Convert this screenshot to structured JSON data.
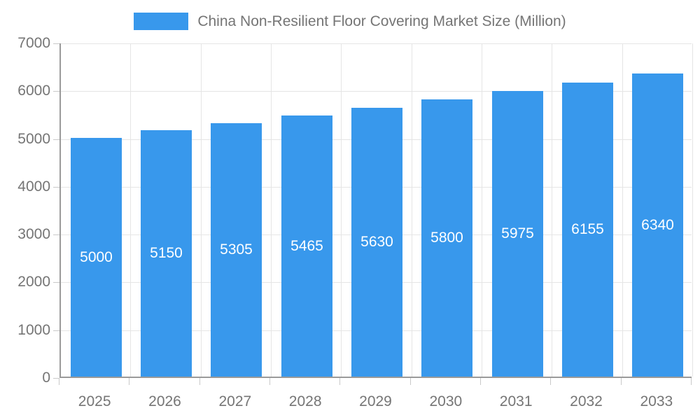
{
  "legend": {
    "label": "China Non-Resilient Floor Covering Market Size (Million)"
  },
  "chart_data": {
    "type": "bar",
    "title": "China Non-Resilient Floor Covering Market Size (Million)",
    "categories": [
      "2025",
      "2026",
      "2027",
      "2028",
      "2029",
      "2030",
      "2031",
      "2032",
      "2033"
    ],
    "values": [
      5000,
      5150,
      5305,
      5465,
      5630,
      5800,
      5975,
      6155,
      6340
    ],
    "value_labels": [
      "5000",
      "5150",
      "5305",
      "5465",
      "5630",
      "5800",
      "5975",
      "6155",
      "6340"
    ],
    "xlabel": "",
    "ylabel": "",
    "ylim": [
      0,
      7000
    ],
    "yticks": [
      0,
      1000,
      2000,
      3000,
      4000,
      5000,
      6000,
      7000
    ],
    "ytick_labels": [
      "0",
      "1000",
      "2000",
      "3000",
      "4000",
      "5000",
      "6000",
      "7000"
    ],
    "grid": true,
    "legend_position": "top",
    "bar_color": "#3898ec",
    "bar_label_color": "#ffffff",
    "axis_text_color": "#757575",
    "gridline_color": "#e5e5e5",
    "axis_line_color": "#9a9a9a"
  }
}
